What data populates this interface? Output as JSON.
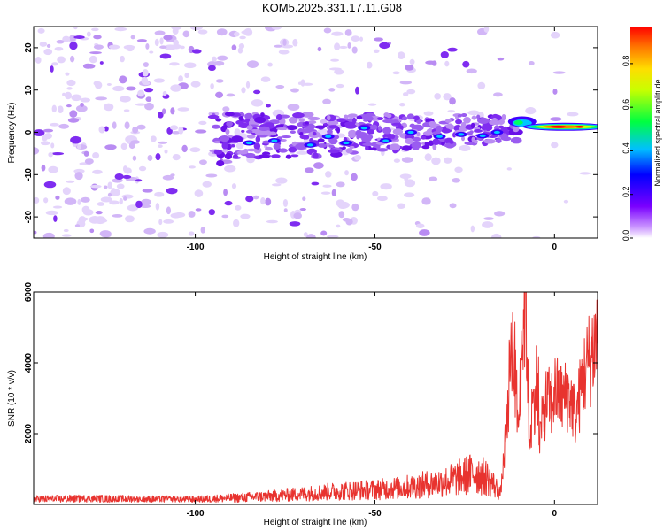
{
  "title": "KOM5.2025.331.17.11.G08",
  "chart_data": [
    {
      "type": "heatmap",
      "xlabel": "Height of straight line (km)",
      "ylabel": "Frequency (Hz)",
      "xlim": [
        -145,
        12
      ],
      "ylim": [
        -25,
        25
      ],
      "xticks": [
        -100,
        -50,
        0
      ],
      "xtick_labels": [
        "-100",
        "-50",
        "0"
      ],
      "yticks": [
        20,
        10,
        0,
        -10,
        -20
      ],
      "ytick_labels": [
        "20",
        "10",
        "0",
        "-10",
        "-20"
      ],
      "colorbar": {
        "label": "Normalized spectral amplitude",
        "range": [
          0,
          0.97
        ],
        "ticks": [
          0.0,
          0.2,
          0.4,
          0.6,
          0.8
        ],
        "tick_labels": [
          "0.0",
          "0.2",
          "0.4",
          "0.6",
          "0.8"
        ],
        "colormap": "rainbow (white-violet-blue-cyan-green-yellow-red)"
      },
      "features": [
        {
          "x": [
            -145,
            -105
          ],
          "y": [
            -25,
            25
          ],
          "amplitude": 0.05
        },
        {
          "x": [
            -95,
            -20
          ],
          "y": [
            -6,
            5
          ],
          "amplitude": 0.2
        },
        {
          "x": [
            -15,
            -5
          ],
          "y": [
            -2,
            4
          ],
          "amplitude": 0.35
        },
        {
          "x": [
            -5,
            12
          ],
          "y": [
            0,
            2
          ],
          "amplitude": 0.97
        }
      ]
    },
    {
      "type": "line",
      "xlabel": "Height of straight line (km)",
      "ylabel": "SNR (10 * v/v)",
      "xlim": [
        -145,
        12
      ],
      "ylim": [
        0,
        6000
      ],
      "xticks": [
        -100,
        -50,
        0
      ],
      "xtick_labels": [
        "-100",
        "-50",
        "0"
      ],
      "yticks": [
        2000,
        4000,
        6000
      ],
      "ytick_labels": [
        "2000",
        "4000",
        "6000"
      ],
      "color": "#e8332f",
      "series": [
        {
          "x": [
            -145,
            -130,
            -115,
            -100,
            -90,
            -80,
            -70,
            -60,
            -50,
            -40,
            -30,
            -22,
            -18,
            -15,
            -13,
            -12,
            -10,
            -9,
            -8,
            -7,
            -6,
            -5,
            -4,
            -3,
            -2,
            -1,
            0,
            2,
            4,
            6,
            8,
            10,
            12
          ],
          "values": [
            150,
            160,
            150,
            140,
            180,
            230,
            300,
            380,
            420,
            500,
            650,
            900,
            700,
            300,
            2500,
            5000,
            2200,
            4500,
            6000,
            1800,
            2700,
            3500,
            1900,
            2600,
            3000,
            2800,
            3200,
            3000,
            3100,
            2500,
            3600,
            4200,
            4800
          ]
        }
      ]
    }
  ]
}
